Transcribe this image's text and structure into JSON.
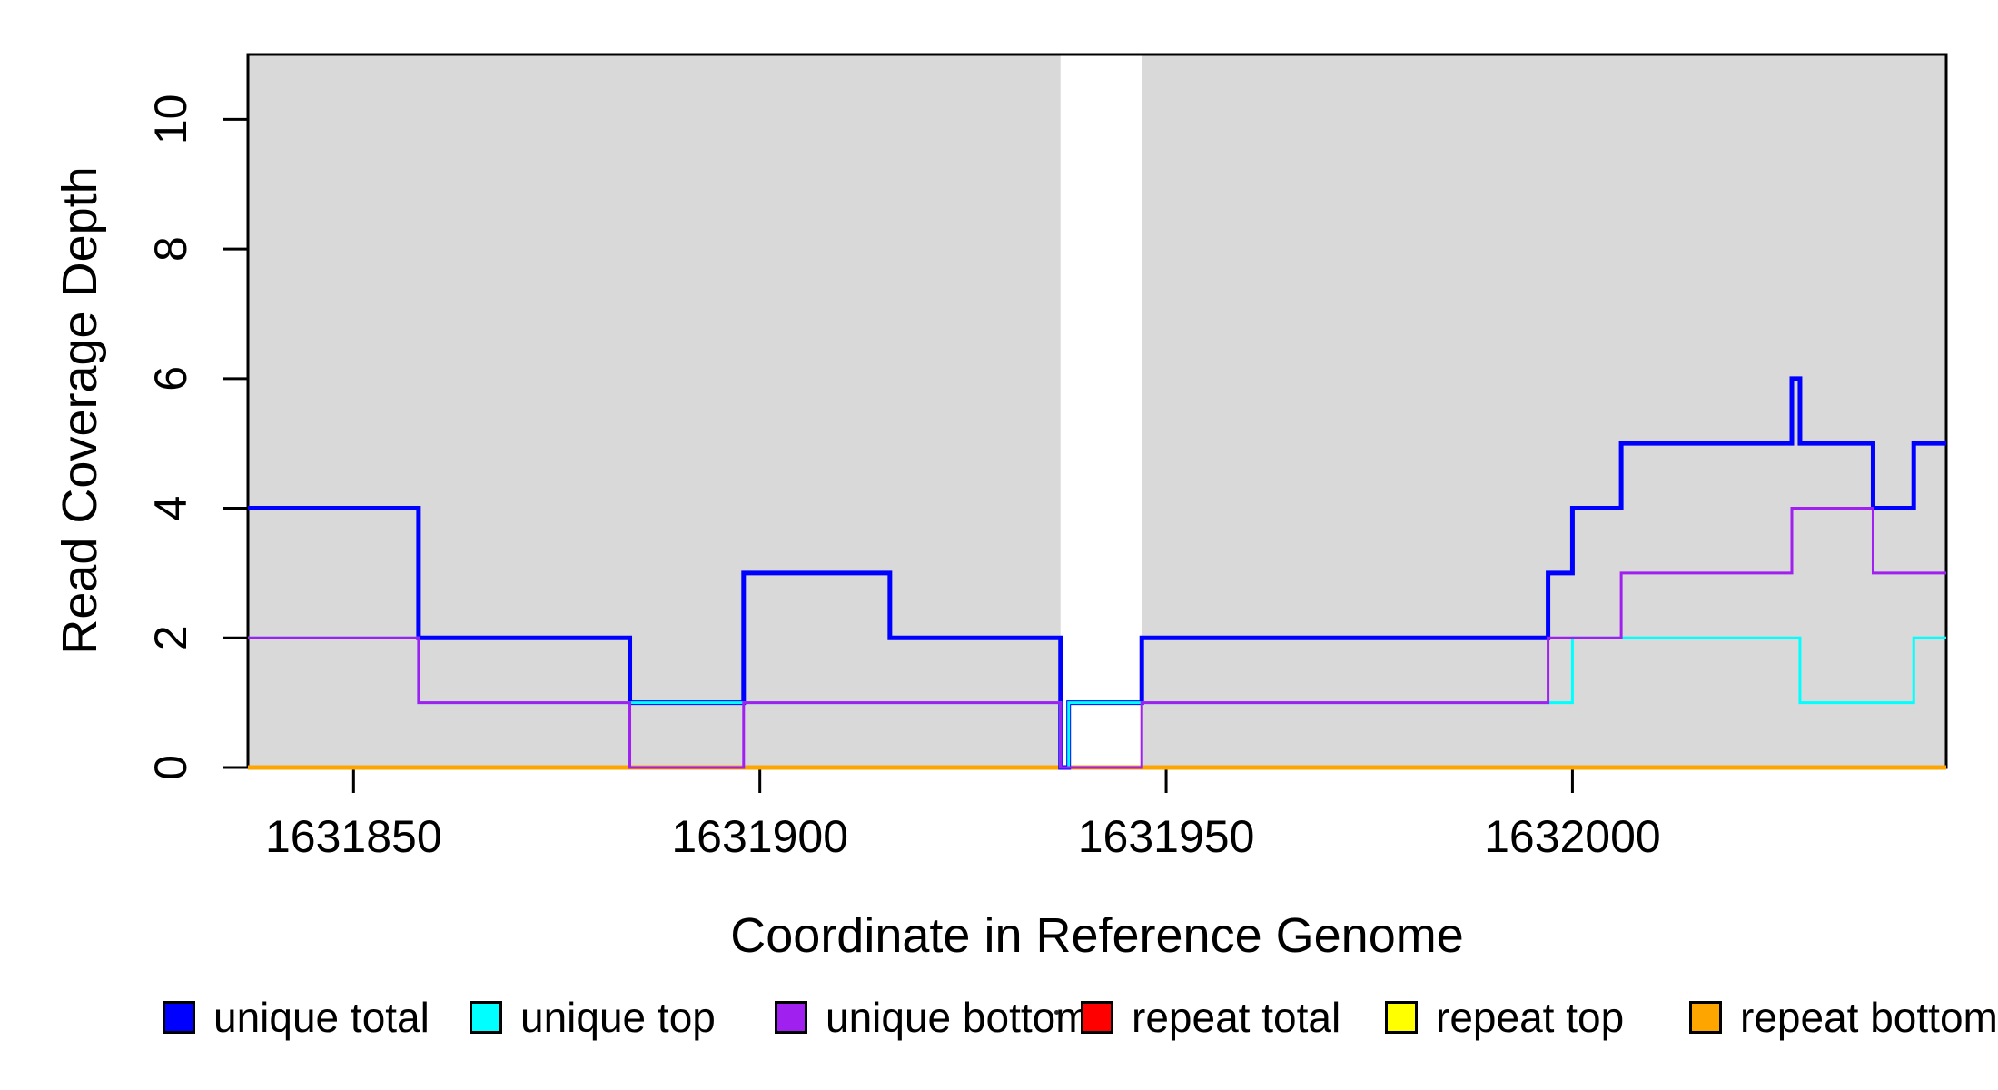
{
  "chart_data": {
    "type": "line",
    "step_style": true,
    "title": "",
    "xlabel": "Coordinate in Reference Genome",
    "ylabel": "Read Coverage Depth",
    "xlim": [
      1631837,
      1632046
    ],
    "ylim": [
      0,
      11
    ],
    "x_ticks": [
      1631850,
      1631900,
      1631950,
      1632000
    ],
    "x_tick_labels": [
      "1631850",
      "1631900",
      "1631950",
      "1632000"
    ],
    "y_ticks": [
      0,
      2,
      4,
      6,
      8,
      10
    ],
    "y_tick_labels": [
      "0",
      "2",
      "4",
      "6",
      "8",
      "10"
    ],
    "grid": false,
    "plot_background": "#ffffff",
    "shaded_color": "#d9d9d9",
    "shaded_regions": [
      [
        1631837,
        1631937
      ],
      [
        1631947,
        1632046
      ]
    ],
    "series": [
      {
        "name": "repeat total",
        "color": "#ff0000",
        "width": 5,
        "steps": [
          [
            1631837,
            0
          ]
        ]
      },
      {
        "name": "repeat top",
        "color": "#ffff00",
        "width": 4,
        "steps": [
          [
            1631837,
            0
          ]
        ]
      },
      {
        "name": "repeat bottom",
        "color": "#ffa500",
        "width": 5,
        "steps": [
          [
            1631837,
            0
          ]
        ]
      },
      {
        "name": "unique total",
        "color": "#0000ff",
        "width": 5,
        "steps": [
          [
            1631837,
            4
          ],
          [
            1631858,
            2
          ],
          [
            1631884,
            1
          ],
          [
            1631898,
            3
          ],
          [
            1631916,
            2
          ],
          [
            1631937,
            0
          ],
          [
            1631938,
            1
          ],
          [
            1631947,
            2
          ],
          [
            1631997,
            3
          ],
          [
            1632000,
            4
          ],
          [
            1632006,
            5
          ],
          [
            1632027,
            6
          ],
          [
            1632028,
            5
          ],
          [
            1632037,
            4
          ],
          [
            1632042,
            5
          ]
        ]
      },
      {
        "name": "unique top",
        "color": "#00ffff",
        "width": 3,
        "steps": [
          [
            1631837,
            2
          ],
          [
            1631858,
            1
          ],
          [
            1631937,
            0
          ],
          [
            1631938,
            1
          ],
          [
            1632000,
            2
          ],
          [
            1632028,
            1
          ],
          [
            1632042,
            2
          ]
        ]
      },
      {
        "name": "unique bottom",
        "color": "#a020f0",
        "width": 3,
        "steps": [
          [
            1631837,
            2
          ],
          [
            1631858,
            1
          ],
          [
            1631884,
            0
          ],
          [
            1631898,
            1
          ],
          [
            1631937,
            0
          ],
          [
            1631947,
            1
          ],
          [
            1631997,
            2
          ],
          [
            1632006,
            3
          ],
          [
            1632027,
            4
          ],
          [
            1632037,
            3
          ]
        ]
      }
    ],
    "legend": {
      "position": "bottom",
      "entries": [
        {
          "label": "unique total",
          "color": "#0000ff"
        },
        {
          "label": "unique top",
          "color": "#00ffff"
        },
        {
          "label": "unique bottom",
          "color": "#a020f0"
        },
        {
          "label": "repeat total",
          "color": "#ff0000"
        },
        {
          "label": "repeat top",
          "color": "#ffff00"
        },
        {
          "label": "repeat bottom",
          "color": "#ffa500"
        }
      ]
    }
  }
}
